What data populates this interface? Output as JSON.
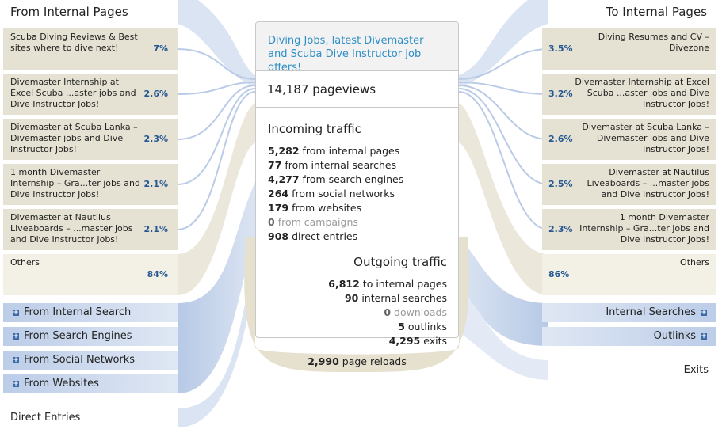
{
  "left": {
    "title": "From Internal Pages",
    "pages": [
      {
        "label": "Scuba Diving Reviews & Best sites where to dive next!",
        "share": "7%"
      },
      {
        "label": "Divemaster Internship at Excel Scuba ...aster jobs and Dive Instructor Jobs!",
        "share": "2.6%"
      },
      {
        "label": "Divemaster at Scuba Lanka – Divemaster jobs and Dive Instructor Jobs!",
        "share": "2.3%"
      },
      {
        "label": "1 month Divemaster Internship – Gra...ter jobs and Dive Instructor Jobs!",
        "share": "2.1%"
      },
      {
        "label": "Divemaster at Nautilus Liveaboards – ...master jobs and Dive Instructor Jobs!",
        "share": "2.1%"
      }
    ],
    "others": {
      "label": "Others",
      "share": "84%"
    },
    "sources": [
      "From Internal Search",
      "From Search Engines",
      "From Social Networks",
      "From Websites"
    ],
    "direct": "Direct Entries"
  },
  "center": {
    "title": "Diving Jobs, latest Divemaster and Scuba Dive Instructor Job offers!",
    "pageviews": {
      "value": "14,187",
      "label": "pageviews"
    },
    "incoming": {
      "title": "Incoming traffic",
      "rows": [
        {
          "value": "5,282",
          "label": "from internal pages"
        },
        {
          "value": "77",
          "label": "from internal searches"
        },
        {
          "value": "4,277",
          "label": "from search engines"
        },
        {
          "value": "264",
          "label": "from social networks"
        },
        {
          "value": "179",
          "label": "from websites"
        },
        {
          "value": "0",
          "label": "from campaigns"
        },
        {
          "value": "908",
          "label": "direct entries"
        }
      ]
    },
    "outgoing": {
      "title": "Outgoing traffic",
      "rows": [
        {
          "value": "6,812",
          "label": "to internal pages"
        },
        {
          "value": "90",
          "label": "internal searches"
        },
        {
          "value": "0",
          "label": "downloads"
        },
        {
          "value": "5",
          "label": "outlinks"
        },
        {
          "value": "4,295",
          "label": "exits"
        }
      ]
    },
    "reloads": {
      "value": "2,990",
      "label": "page reloads"
    }
  },
  "right": {
    "title": "To Internal Pages",
    "pages": [
      {
        "label": "Diving Resumes and CV – Divezone",
        "share": "3.5%"
      },
      {
        "label": "Divemaster Internship at Excel Scuba ...aster jobs and Dive Instructor Jobs!",
        "share": "3.2%"
      },
      {
        "label": "Divemaster at Scuba Lanka – Divemaster jobs and Dive Instructor Jobs!",
        "share": "2.6%"
      },
      {
        "label": "Divemaster at Nautilus Liveaboards – ...master jobs and Dive Instructor Jobs!",
        "share": "2.5%"
      },
      {
        "label": "1 month Divemaster Internship – Gra...ter jobs and Dive Instructor Jobs!",
        "share": "2.3%"
      }
    ],
    "others": {
      "label": "Others",
      "share": "86%"
    },
    "targets": [
      "Internal Searches",
      "Outlinks"
    ],
    "exits": "Exits"
  }
}
